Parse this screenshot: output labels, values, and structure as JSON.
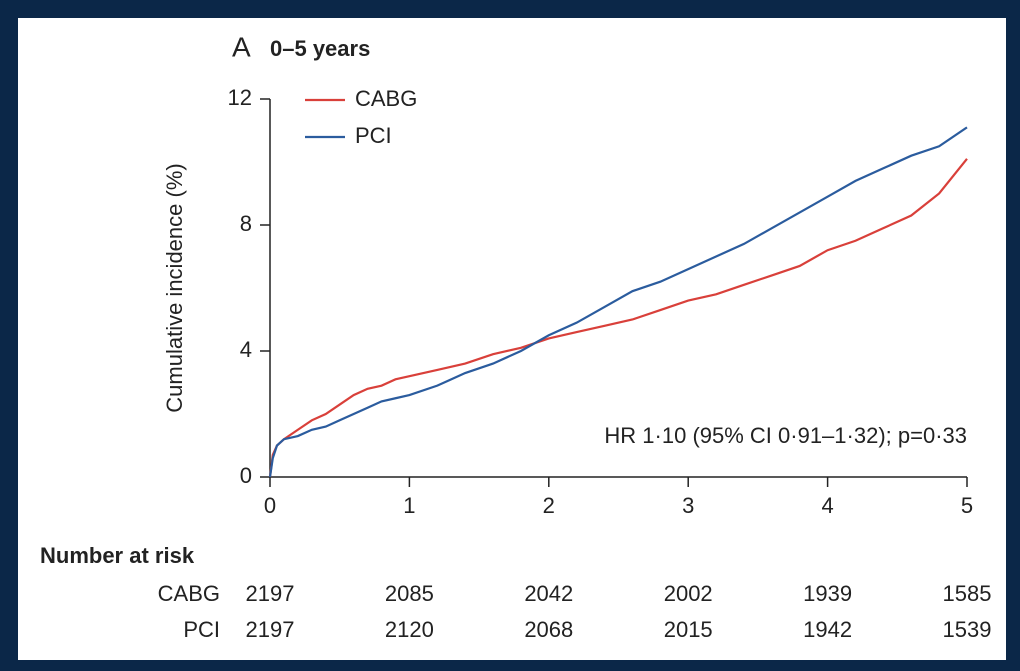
{
  "chart_data": {
    "type": "line",
    "panel_label": "A",
    "title": "0–5 years",
    "y_label": "Cumulative incidence (%)",
    "annotation": "HR 1·10 (95% CI 0·91–1·32); p=0·33",
    "xlim": [
      0,
      5
    ],
    "xticks": [
      0,
      1,
      2,
      3,
      4,
      5
    ],
    "ylim": [
      0,
      12
    ],
    "yticks": [
      0,
      4,
      8,
      12
    ],
    "legend": "upper left",
    "x": [
      0,
      0.02,
      0.05,
      0.1,
      0.2,
      0.3,
      0.4,
      0.5,
      0.6,
      0.7,
      0.8,
      0.9,
      1.0,
      1.2,
      1.4,
      1.6,
      1.8,
      2.0,
      2.2,
      2.4,
      2.6,
      2.8,
      3.0,
      3.2,
      3.4,
      3.6,
      3.8,
      4.0,
      4.2,
      4.4,
      4.6,
      4.8,
      5.0
    ],
    "series": [
      {
        "name": "CABG",
        "color": "#d9403a",
        "values": [
          0,
          0.7,
          1.0,
          1.2,
          1.5,
          1.8,
          2.0,
          2.3,
          2.6,
          2.8,
          2.9,
          3.1,
          3.2,
          3.4,
          3.6,
          3.9,
          4.1,
          4.4,
          4.6,
          4.8,
          5.0,
          5.3,
          5.6,
          5.8,
          6.1,
          6.4,
          6.7,
          7.2,
          7.5,
          7.9,
          8.3,
          9.0,
          10.1
        ]
      },
      {
        "name": "PCI",
        "color": "#2b5c9e",
        "values": [
          0,
          0.6,
          1.0,
          1.2,
          1.3,
          1.5,
          1.6,
          1.8,
          2.0,
          2.2,
          2.4,
          2.5,
          2.6,
          2.9,
          3.3,
          3.6,
          4.0,
          4.5,
          4.9,
          5.4,
          5.9,
          6.2,
          6.6,
          7.0,
          7.4,
          7.9,
          8.4,
          8.9,
          9.4,
          9.8,
          10.2,
          10.5,
          11.1
        ]
      }
    ],
    "risk_table": {
      "title": "Number at risk",
      "rows": [
        {
          "name": "CABG",
          "values": [
            2197,
            2085,
            2042,
            2002,
            1939,
            1585
          ]
        },
        {
          "name": "PCI",
          "values": [
            2197,
            2120,
            2068,
            2015,
            1942,
            1539
          ]
        }
      ]
    }
  }
}
